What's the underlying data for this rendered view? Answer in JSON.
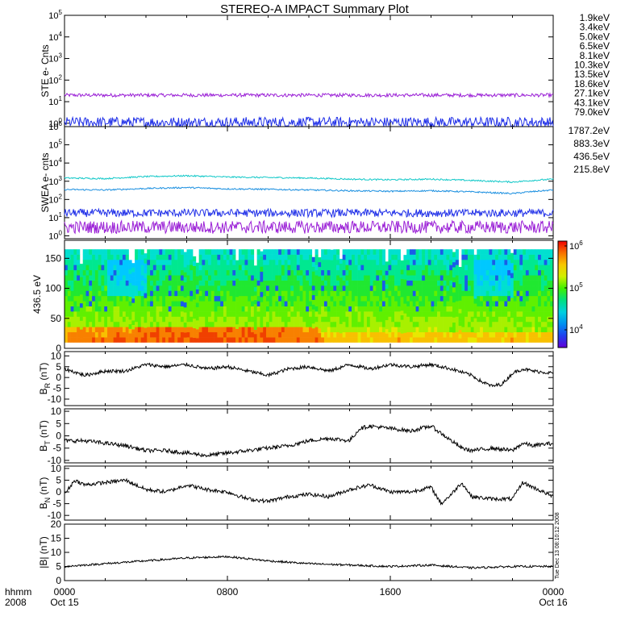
{
  "title": "STEREO-A IMPACT Summary Plot",
  "side_stamp": "Tue Dec 13 08:10:12 2008",
  "time_axis": {
    "left_label_top": "hhmm",
    "left_label_bottom": "2008",
    "ticks": [
      {
        "hhmm": "0000",
        "date": "Oct 15",
        "hour": 0
      },
      {
        "hhmm": "0800",
        "date": "",
        "hour": 8
      },
      {
        "hhmm": "1600",
        "date": "",
        "hour": 16
      },
      {
        "hhmm": "0000",
        "date": "Oct 16",
        "hour": 24
      }
    ]
  },
  "ste_legend": [
    {
      "label": "1.9keV",
      "color": "#9a1fd6"
    },
    {
      "label": "3.4keV",
      "color": "#5a16c8"
    },
    {
      "label": "5.0keV",
      "color": "#1f2fe8"
    },
    {
      "label": "6.5keV",
      "color": "#1a8fe0"
    },
    {
      "label": "8.1keV",
      "color": "#10c8c8"
    },
    {
      "label": "10.3keV",
      "color": "#18c870"
    },
    {
      "label": "13.5keV",
      "color": "#40d020"
    },
    {
      "label": "18.6keV",
      "color": "#b8d818"
    },
    {
      "label": "27.1keV",
      "color": "#e8c818"
    },
    {
      "label": "43.1keV",
      "color": "#e87810"
    },
    {
      "label": "79.0keV",
      "color": "#d82010"
    }
  ],
  "swea_legend": [
    {
      "label": "1787.2eV",
      "color": "#9a1fd6"
    },
    {
      "label": "883.3eV",
      "color": "#1f2fe8"
    },
    {
      "label": "436.5eV",
      "color": "#1a8fe0"
    },
    {
      "label": "215.8eV",
      "color": "#10c8c8"
    }
  ],
  "colorbar": {
    "tick_labels": [
      "10^6",
      "10^5",
      "10^4"
    ]
  },
  "chart_data": [
    {
      "type": "line",
      "panel": "STE",
      "ylabel": "STE e- Cnts",
      "yscale": "log",
      "ylim": [
        0.7,
        100000
      ],
      "y_tick_labels": [
        "10^0",
        "10^1",
        "10^2",
        "10^3",
        "10^4",
        "10^5"
      ],
      "series": [
        {
          "name": "1.9keV",
          "level": 20,
          "noise": 0.08,
          "color": "#9a1fd6"
        },
        {
          "name": "5.0keV",
          "level": 1.1,
          "noise": 0.25,
          "color": "#1f2fe8"
        }
      ]
    },
    {
      "type": "line",
      "panel": "SWEA",
      "ylabel": "SWEA e- cnts",
      "yscale": "log",
      "ylim": [
        0.7,
        1000000
      ],
      "y_tick_labels": [
        "10^0",
        "10^1",
        "10^2",
        "10^3",
        "10^4",
        "10^5",
        "10^6"
      ],
      "series": [
        {
          "name": "215.8eV",
          "x": [
            0,
            2,
            4,
            6,
            8,
            10,
            12,
            14,
            16,
            18,
            20,
            22,
            24
          ],
          "y": [
            1500,
            1400,
            1800,
            2000,
            1700,
            1600,
            1500,
            1300,
            1200,
            1300,
            1100,
            900,
            1300
          ],
          "color": "#10c8c8"
        },
        {
          "name": "436.5eV",
          "x": [
            0,
            2,
            4,
            6,
            8,
            10,
            12,
            14,
            16,
            18,
            20,
            22,
            24
          ],
          "y": [
            350,
            330,
            400,
            450,
            380,
            360,
            330,
            300,
            280,
            300,
            260,
            210,
            330
          ],
          "color": "#1a8fe0"
        },
        {
          "name": "883.3eV",
          "level": 18,
          "noise": 0.22,
          "color": "#1f2fe8"
        },
        {
          "name": "1787.2eV",
          "level": 3,
          "noise": 0.35,
          "color": "#9a1fd6"
        }
      ]
    },
    {
      "type": "heatmap",
      "panel": "pitch-angle",
      "ylabel": "436.5 eV",
      "ylim": [
        0,
        180
      ],
      "y_tick_labels": [
        "0",
        "50",
        "100",
        "150"
      ],
      "y_ticks": [
        0,
        50,
        100,
        150
      ],
      "color_scale": "log counts 10^4 to 10^6"
    },
    {
      "type": "line",
      "panel": "BR",
      "ylabel_main": "B",
      "ylabel_sub": "R",
      "ylabel_unit": "(nT)",
      "ylim": [
        -13,
        12
      ],
      "y_tick_labels": [
        "10",
        "5",
        "0",
        "-5",
        "-10"
      ],
      "y_ticks": [
        10,
        5,
        0,
        -5,
        -10
      ],
      "series": [
        {
          "name": "BR",
          "x": [
            0,
            1,
            2,
            3,
            4,
            5,
            6,
            7,
            8,
            9,
            10,
            11,
            12,
            13,
            14,
            15,
            16,
            17,
            18,
            19,
            20,
            20.5,
            21,
            21.5,
            22,
            22.5,
            23,
            24
          ],
          "y": [
            4,
            1,
            3,
            3,
            6,
            5,
            6,
            4,
            5,
            3,
            1,
            4,
            5,
            3,
            6,
            4,
            6,
            5,
            6,
            4,
            1,
            -2,
            -4,
            -3,
            2,
            4,
            3,
            2
          ],
          "color": "#000000"
        }
      ]
    },
    {
      "type": "line",
      "panel": "BT",
      "ylabel_main": "B",
      "ylabel_sub": "T",
      "ylabel_unit": "(nT)",
      "ylim": [
        -11,
        11
      ],
      "y_tick_labels": [
        "10",
        "5",
        "0",
        "-5",
        "-10"
      ],
      "y_ticks": [
        10,
        5,
        0,
        -5,
        -10
      ],
      "series": [
        {
          "name": "BT",
          "x": [
            0,
            1,
            2,
            3,
            4,
            5,
            6,
            7,
            8,
            9,
            10,
            11,
            12,
            13,
            14,
            14.5,
            15,
            16,
            17,
            18,
            19,
            19.5,
            20,
            21,
            22,
            22.5,
            23,
            24
          ],
          "y": [
            -2,
            -2,
            -3,
            -4,
            -6,
            -6,
            -7,
            -8,
            -7,
            -6,
            -5,
            -4,
            -2,
            -1,
            -2,
            3,
            4,
            3,
            2,
            4,
            -2,
            -5,
            -6,
            -5,
            -6,
            -3,
            -4,
            -3
          ],
          "color": "#000000"
        }
      ]
    },
    {
      "type": "line",
      "panel": "BN",
      "ylabel_main": "B",
      "ylabel_sub": "N",
      "ylabel_unit": "(nT)",
      "ylim": [
        -12,
        11
      ],
      "y_tick_labels": [
        "10",
        "5",
        "0",
        "-5",
        "-10"
      ],
      "y_ticks": [
        10,
        5,
        0,
        -5,
        -10
      ],
      "series": [
        {
          "name": "BN",
          "x": [
            0,
            0.5,
            1,
            2,
            3,
            4,
            5,
            6,
            7,
            8,
            9,
            10,
            11,
            12,
            13,
            14,
            15,
            16,
            17,
            18,
            18.5,
            19,
            19.5,
            20,
            21,
            22,
            22.5,
            23,
            24
          ],
          "y": [
            -1,
            5,
            3,
            4,
            5,
            1,
            0,
            3,
            1,
            0,
            -3,
            -4,
            -2,
            -1,
            -2,
            1,
            3,
            0,
            0,
            2,
            -5,
            -1,
            4,
            -2,
            -3,
            -3,
            4,
            2,
            -2
          ],
          "color": "#000000"
        }
      ]
    },
    {
      "type": "line",
      "panel": "Btot",
      "ylabel_main": "|B|",
      "ylabel_unit": "(nT)",
      "ylim": [
        0,
        20
      ],
      "y_tick_labels": [
        "20",
        "15",
        "10",
        "5",
        "0"
      ],
      "y_ticks": [
        20,
        15,
        10,
        5,
        0
      ],
      "series": [
        {
          "name": "|B|",
          "x": [
            0,
            2,
            4,
            6,
            8,
            10,
            12,
            14,
            16,
            18,
            20,
            22,
            24
          ],
          "y": [
            5,
            6,
            7,
            8,
            8.5,
            7,
            6,
            5.5,
            5,
            5.5,
            4.5,
            5,
            5
          ],
          "color": "#000000"
        }
      ]
    }
  ]
}
